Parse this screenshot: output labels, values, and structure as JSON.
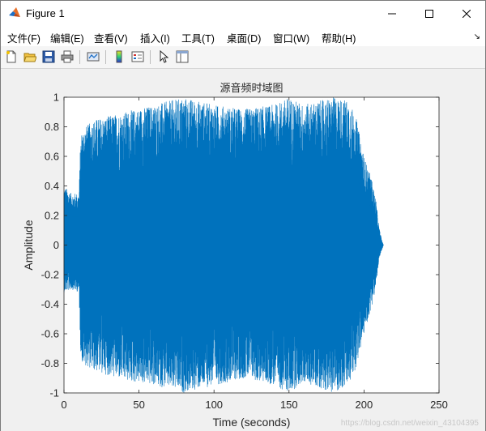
{
  "window": {
    "title": "Figure 1",
    "minimize_icon": "minimize-icon",
    "maximize_icon": "maximize-icon",
    "close_icon": "close-icon"
  },
  "menubar": {
    "items": [
      "文件(F)",
      "编辑(E)",
      "查看(V)",
      "插入(I)",
      "工具(T)",
      "桌面(D)",
      "窗口(W)",
      "帮助(H)"
    ],
    "overflow_icon": "chevron-icon"
  },
  "toolbar": {
    "icons": [
      "new-figure-icon",
      "open-file-icon",
      "save-icon",
      "print-icon",
      "link-plot-icon",
      "insert-colorbar-icon",
      "insert-legend-icon",
      "edit-plot-icon",
      "property-inspector-icon"
    ]
  },
  "colors": {
    "series": "#0072bd",
    "axes_bg": "#ffffff",
    "axis": "#262626"
  },
  "watermark": "https://blog.csdn.net/weixin_43104395",
  "chart_data": {
    "type": "line",
    "title": "源音频时域图",
    "xlabel": "Time (seconds)",
    "ylabel": "Amplitude",
    "xlim": [
      0,
      250
    ],
    "ylim": [
      -1,
      1
    ],
    "xticks": [
      0,
      50,
      100,
      150,
      200,
      250
    ],
    "yticks": [
      -1,
      -0.8,
      -0.6,
      -0.4,
      -0.2,
      0,
      0.2,
      0.4,
      0.6,
      0.8,
      1
    ],
    "grid": false,
    "series": [
      {
        "envelope": {
          "x": [
            0,
            5,
            10,
            11,
            12,
            20,
            40,
            60,
            80,
            100,
            120,
            140,
            150,
            160,
            180,
            190,
            195,
            200,
            205,
            208,
            210,
            212,
            213
          ],
          "max": [
            0.4,
            0.35,
            0.35,
            0.7,
            0.78,
            0.85,
            0.9,
            0.95,
            1.0,
            0.95,
            0.92,
            0.95,
            1.0,
            0.95,
            1.0,
            0.98,
            0.85,
            0.6,
            0.45,
            0.3,
            0.12,
            0.03,
            0.0
          ],
          "min": [
            -0.32,
            -0.3,
            -0.32,
            -0.7,
            -0.8,
            -0.85,
            -0.92,
            -0.95,
            -1.0,
            -0.95,
            -0.9,
            -0.95,
            -1.0,
            -0.93,
            -1.0,
            -0.95,
            -0.82,
            -0.6,
            -0.42,
            -0.28,
            -0.1,
            -0.03,
            0.0
          ]
        }
      }
    ]
  }
}
